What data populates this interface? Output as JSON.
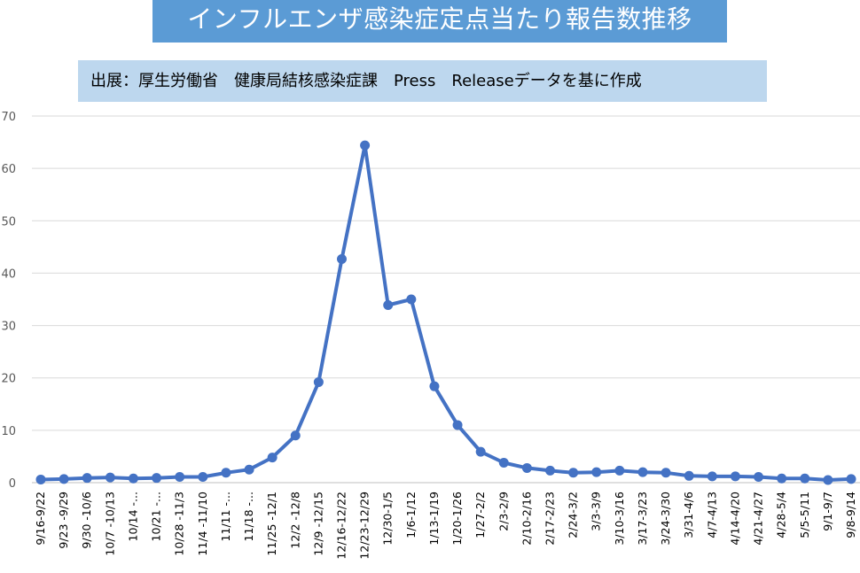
{
  "title": "インフルエンザ感染症定点当たり報告数推移",
  "subtitle": "出展：厚生労働省　健康局結核感染症課　Press　Releaseデータを基に作成",
  "colors": {
    "title_bg": "#5b9bd5",
    "subtitle_bg": "#bdd7ee",
    "line": "#4472c4",
    "grid": "#d9d9d9"
  },
  "chart_data": {
    "type": "line",
    "title": "インフルエンザ感染症定点当たり報告数推移",
    "subtitle": "出展：厚生労働省　健康局結核感染症課　Press　Releaseデータを基に作成",
    "xlabel": "",
    "ylabel": "",
    "ylim": [
      0,
      70
    ],
    "yticks": [
      0,
      10,
      20,
      30,
      40,
      50,
      60,
      70
    ],
    "ytick_labels": [
      "0",
      "10",
      "20",
      "30",
      "40",
      "50",
      "60",
      "70"
    ],
    "grid": true,
    "legend": "none",
    "categories": [
      "9/16-9/22",
      "9/23 -9/29",
      "9/30 -10/6",
      "10/7 -10/13",
      "10/14 -...",
      "10/21 -...",
      "10/28 -11/3",
      "11/4 -11/10",
      "11/11 -...",
      "11/18 -...",
      "11/25 -12/1",
      "12/2 -12/8",
      "12/9 -12/15",
      "12/16-12/22",
      "12/23-12/29",
      "12/30-1/5",
      "1/6-1/12",
      "1/13-1/19",
      "1/20-1/26",
      "1/27-2/2",
      "2/3-2/9",
      "2/10-2/16",
      "2/17-2/23",
      "2/24-3/2",
      "3/3-3/9",
      "3/10-3/16",
      "3/17-3/23",
      "3/24-3/30",
      "3/31-4/6",
      "4/7-4/13",
      "4/14-4/20",
      "4/21-4/27",
      "4/28-5/4",
      "5/5-5/11",
      "9/1-9/7",
      "9/8-9/14"
    ],
    "series": [
      {
        "values": [
          0.6,
          0.7,
          0.9,
          1.0,
          0.8,
          0.9,
          1.1,
          1.1,
          1.9,
          2.5,
          4.8,
          9.0,
          19.2,
          42.7,
          64.4,
          33.9,
          35.0,
          18.4,
          11.0,
          5.9,
          3.8,
          2.8,
          2.3,
          1.9,
          2.0,
          2.3,
          2.0,
          1.9,
          1.3,
          1.2,
          1.2,
          1.1,
          0.8,
          0.8,
          0.5,
          0.7
        ]
      }
    ]
  }
}
